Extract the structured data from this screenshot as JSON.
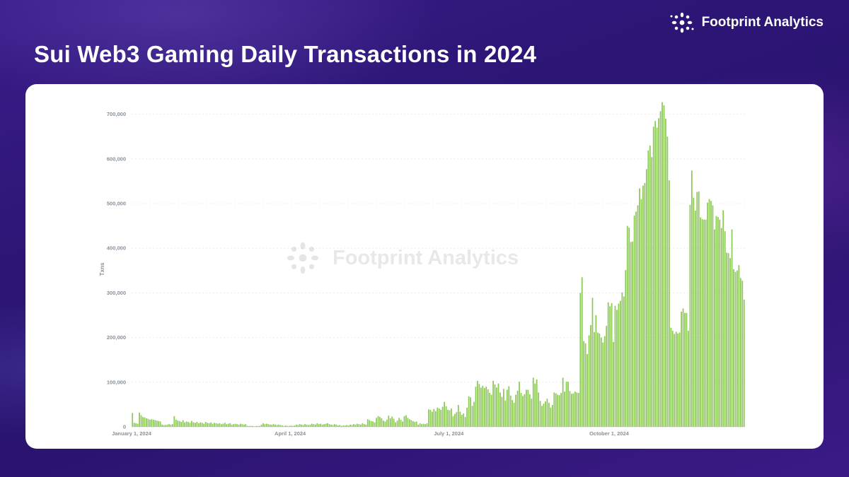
{
  "header": {
    "title": "Sui Web3 Gaming Daily Transactions in 2024",
    "brand_name": "Footprint Analytics",
    "brand_icon": "footprint-logo-icon"
  },
  "watermark": {
    "text": "Footprint Analytics"
  },
  "colors": {
    "bar": "#8dc955",
    "background": "#2c1575",
    "card": "#ffffff",
    "grid": "#e6e6e6"
  },
  "chart_data": {
    "type": "bar",
    "title": "Sui Web3 Gaming Daily Transactions in 2024",
    "xlabel": "",
    "ylabel": "Txns",
    "ylim": [
      0,
      720000
    ],
    "y_ticks": [
      {
        "value": 0,
        "label": "0"
      },
      {
        "value": 100000,
        "label": "100,000"
      },
      {
        "value": 200000,
        "label": "200,000"
      },
      {
        "value": 300000,
        "label": "300,000"
      },
      {
        "value": 400000,
        "label": "400,000"
      },
      {
        "value": 500000,
        "label": "500,000"
      },
      {
        "value": 600000,
        "label": "600,000"
      },
      {
        "value": 700000,
        "label": "700,000"
      }
    ],
    "x_ticks": [
      {
        "index": 0,
        "label": "January 1, 2024"
      },
      {
        "index": 91,
        "label": "April 1, 2024"
      },
      {
        "index": 182,
        "label": "July 1, 2024"
      },
      {
        "index": 274,
        "label": "October 1, 2024"
      }
    ],
    "x_start": "2024-01-01",
    "grid": true,
    "legend": "none",
    "series": [
      {
        "values": [
          31000,
          9000,
          8000,
          7000,
          32000,
          26000,
          22000,
          21000,
          19000,
          18000,
          16000,
          17000,
          16000,
          15000,
          14000,
          13000,
          12000,
          5000,
          4000,
          4000,
          5000,
          6000,
          5000,
          6000,
          24000,
          16000,
          14000,
          13000,
          11000,
          15000,
          10000,
          12000,
          11000,
          9000,
          13000,
          10000,
          9000,
          11000,
          8000,
          10000,
          9000,
          7000,
          11000,
          9000,
          8000,
          10000,
          7000,
          9000,
          8000,
          7000,
          8000,
          6000,
          7000,
          9000,
          6000,
          7000,
          8000,
          5000,
          6000,
          7000,
          6000,
          5000,
          7000,
          6000,
          5000,
          6000,
          2000,
          2000,
          2000,
          2000,
          1000,
          2000,
          2000,
          2000,
          5000,
          8000,
          6000,
          7000,
          6000,
          5000,
          5000,
          6000,
          5000,
          4000,
          5000,
          4000,
          3000,
          2000,
          3000,
          2000,
          2000,
          3000,
          2000,
          3000,
          5000,
          4000,
          6000,
          5000,
          4000,
          6000,
          5000,
          4000,
          5000,
          7000,
          6000,
          5000,
          8000,
          6000,
          7000,
          5000,
          6000,
          7000,
          8000,
          6000,
          5000,
          4000,
          6000,
          5000,
          3000,
          4000,
          2000,
          3000,
          3000,
          4000,
          3000,
          5000,
          4000,
          6000,
          5000,
          7000,
          6000,
          5000,
          8000,
          6000,
          5000,
          17000,
          15000,
          13000,
          12000,
          10000,
          20000,
          24000,
          22000,
          19000,
          14000,
          12000,
          16000,
          25000,
          19000,
          23000,
          18000,
          10000,
          14000,
          20000,
          16000,
          12000,
          24000,
          26000,
          20000,
          17000,
          15000,
          13000,
          11000,
          12000,
          5000,
          8000,
          6000,
          7000,
          6000,
          8000,
          39000,
          38000,
          34000,
          40000,
          35000,
          43000,
          41000,
          38000,
          45000,
          56000,
          46000,
          38000,
          37000,
          41000,
          24000,
          29000,
          33000,
          49000,
          34000,
          27000,
          30000,
          22000,
          43000,
          68000,
          66000,
          47000,
          56000,
          90000,
          103000,
          96000,
          88000,
          92000,
          87000,
          90000,
          84000,
          76000,
          72000,
          103000,
          95000,
          88000,
          97000,
          77000,
          67000,
          85000,
          59000,
          83000,
          91000,
          70000,
          60000,
          54000,
          72000,
          81000,
          101000,
          76000,
          69000,
          73000,
          83000,
          83000,
          73000,
          63000,
          110000,
          97000,
          106000,
          77000,
          58000,
          47000,
          52000,
          57000,
          63000,
          54000,
          43000,
          49000,
          77000,
          75000,
          72000,
          71000,
          76000,
          110000,
          79000,
          101000,
          101000,
          80000,
          74000,
          75000,
          79000,
          77000,
          76000,
          300000,
          335000,
          192000,
          187000,
          163000,
          205000,
          228000,
          289000,
          212000,
          250000,
          211000,
          209000,
          200000,
          189000,
          203000,
          226000,
          279000,
          270000,
          277000,
          190000,
          271000,
          262000,
          276000,
          282000,
          301000,
          292000,
          351000,
          450000,
          446000,
          414000,
          415000,
          473000,
          482000,
          496000,
          534000,
          510000,
          540000,
          546000,
          577000,
          619000,
          630000,
          604000,
          672000,
          685000,
          670000,
          691000,
          707000,
          727000,
          720000,
          690000,
          650000,
          552000,
          222000,
          215000,
          208000,
          213000,
          209000,
          211000,
          258000,
          265000,
          255000,
          255000,
          215000,
          497000,
          574000,
          513000,
          484000,
          526000,
          527000,
          469000,
          465000,
          464000,
          464000,
          502000,
          510000,
          506000,
          496000,
          442000,
          472000,
          470000,
          464000,
          445000,
          485000,
          438000,
          390000,
          389000,
          378000,
          442000,
          353000,
          347000,
          350000,
          362000,
          333000,
          327000,
          285000
        ]
      }
    ]
  }
}
